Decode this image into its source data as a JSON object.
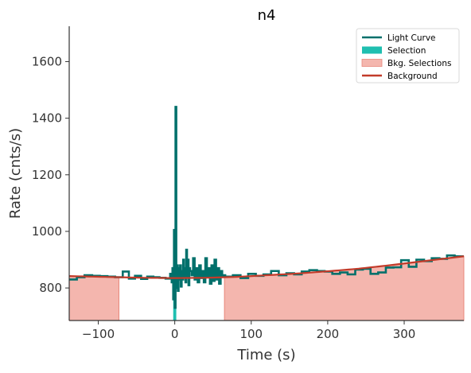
{
  "chart_data": {
    "type": "line",
    "title": "n4",
    "xlabel": "Time (s)",
    "ylabel": "Rate (cnts/s)",
    "xlim": [
      -138,
      378
    ],
    "ylim": [
      685,
      1725
    ],
    "x_ticks": [
      -100,
      0,
      100,
      200,
      300
    ],
    "x_tick_labels": [
      "−100",
      "0",
      "100",
      "200",
      "300"
    ],
    "y_ticks": [
      800,
      1000,
      1200,
      1400,
      1600
    ],
    "y_tick_labels": [
      "800",
      "1000",
      "1200",
      "1400",
      "1600"
    ],
    "grid": false,
    "legend_position": "top-right",
    "legend": [
      {
        "label": "Light Curve",
        "kind": "line",
        "color": "#00706b"
      },
      {
        "label": "Selection",
        "kind": "patch",
        "color": "#1fbfb0"
      },
      {
        "label": "Bkg. Selections",
        "kind": "patch",
        "color": "#f4b6ae"
      },
      {
        "label": "Background",
        "kind": "line",
        "color": "#c23b2a"
      }
    ],
    "colors": {
      "light_curve": "#00706b",
      "selection": "#1fbfb0",
      "bkg_selection": "#f4b6ae",
      "bkg_edge": "#e8887c",
      "background": "#c23b2a"
    },
    "selection": {
      "x": [
        -2,
        2
      ],
      "y": [
        685,
        840
      ]
    },
    "bkg_selections": [
      {
        "x_start": -138,
        "x_end": -73
      },
      {
        "x_start": 65,
        "x_end": 378
      }
    ],
    "background_model": {
      "x": [
        -138,
        -90,
        -40,
        0,
        40,
        80,
        120,
        160,
        200,
        240,
        280,
        320,
        378
      ],
      "y": [
        842,
        839,
        836,
        835,
        836,
        839,
        845,
        851,
        859,
        868,
        880,
        893,
        912
      ]
    },
    "light_curve": {
      "x": [
        -138,
        -128,
        -118,
        -108,
        -98,
        -88,
        -78,
        -68,
        -60,
        -52,
        -44,
        -36,
        -28,
        -20,
        -12,
        -6,
        -4,
        -3,
        -2,
        -1,
        0,
        1,
        2,
        3,
        4,
        5,
        6,
        7,
        8,
        9,
        10,
        11,
        12,
        13,
        14,
        15,
        16,
        17,
        18,
        19,
        20,
        22,
        24,
        26,
        28,
        30,
        32,
        34,
        36,
        38,
        40,
        42,
        44,
        46,
        48,
        50,
        52,
        54,
        56,
        58,
        60,
        62,
        64,
        66,
        76,
        86,
        96,
        106,
        116,
        126,
        136,
        146,
        156,
        166,
        176,
        186,
        196,
        206,
        216,
        226,
        236,
        246,
        256,
        266,
        276,
        286,
        296,
        306,
        316,
        326,
        336,
        346,
        356,
        366,
        378
      ],
      "y": [
        830,
        838,
        845,
        843,
        842,
        840,
        838,
        858,
        833,
        843,
        832,
        840,
        838,
        836,
        833,
        850,
        820,
        870,
        760,
        1005,
        730,
        1440,
        800,
        880,
        790,
        870,
        830,
        880,
        805,
        860,
        830,
        900,
        840,
        870,
        820,
        935,
        840,
        900,
        810,
        870,
        860,
        845,
        905,
        830,
        870,
        820,
        880,
        835,
        860,
        820,
        905,
        840,
        870,
        815,
        880,
        825,
        900,
        830,
        870,
        815,
        860,
        840,
        845,
        840,
        845,
        835,
        850,
        843,
        848,
        860,
        845,
        852,
        848,
        858,
        863,
        860,
        858,
        850,
        855,
        848,
        865,
        868,
        850,
        855,
        872,
        873,
        898,
        875,
        900,
        895,
        905,
        903,
        915,
        912,
        912
      ]
    }
  }
}
